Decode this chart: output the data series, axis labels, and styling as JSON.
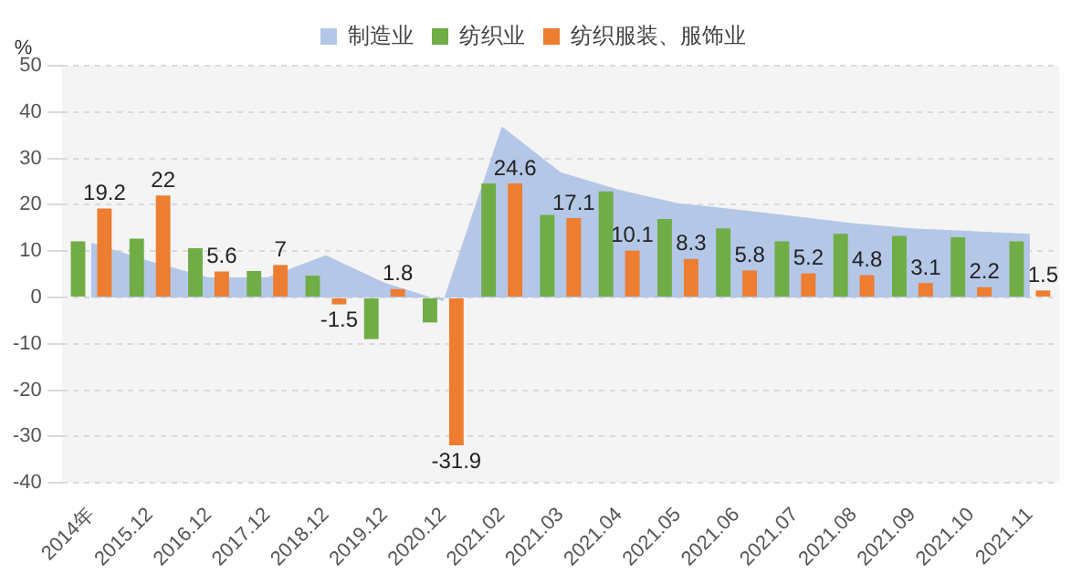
{
  "chart_data": {
    "type": "bar",
    "ylabel": "%",
    "categories": [
      "2014年",
      "2015.12",
      "2016.12",
      "2017.12",
      "2018.12",
      "2019.12",
      "2020.12",
      "2021.02",
      "2021.03",
      "2021.04",
      "2021.05",
      "2021.06",
      "2021.07",
      "2021.08",
      "2021.09",
      "2021.10",
      "2021.11"
    ],
    "series": [
      {
        "name": "制造业",
        "type": "area",
        "color": "#b4c7e7",
        "values": [
          11.8,
          7.8,
          4.3,
          4.3,
          9.1,
          3.2,
          -0.8,
          36.9,
          27,
          23.2,
          20.3,
          19,
          17.5,
          16,
          14.9,
          14.3,
          13.7
        ]
      },
      {
        "name": "纺织业",
        "color": "#70ad47",
        "values": [
          12.1,
          12.7,
          10.6,
          5.7,
          4.7,
          -9,
          -5.4,
          24.6,
          17.8,
          22.9,
          16.9,
          14.9,
          12.1,
          13.7,
          13.3,
          13,
          12.1
        ]
      },
      {
        "name": "纺织服装、服饰业",
        "color": "#ed7d31",
        "values": [
          19.2,
          22,
          5.6,
          7,
          -1.5,
          1.8,
          -31.9,
          24.6,
          17.1,
          10.1,
          8.3,
          5.8,
          5.2,
          4.8,
          3.1,
          2.2,
          1.5
        ],
        "value_labels": [
          "19.2",
          "22",
          "5.6",
          "7",
          "-1.5",
          "1.8",
          "-31.9",
          "24.6",
          "17.1",
          "10.1",
          "8.3",
          "5.8",
          "5.2",
          "4.8",
          "3.1",
          "2.2",
          "1.5"
        ]
      }
    ],
    "ylim": [
      -40,
      50
    ],
    "yticks": [
      -40,
      -30,
      -20,
      -10,
      0,
      10,
      20,
      30,
      40,
      50
    ],
    "grid": "y",
    "legend": "top"
  }
}
